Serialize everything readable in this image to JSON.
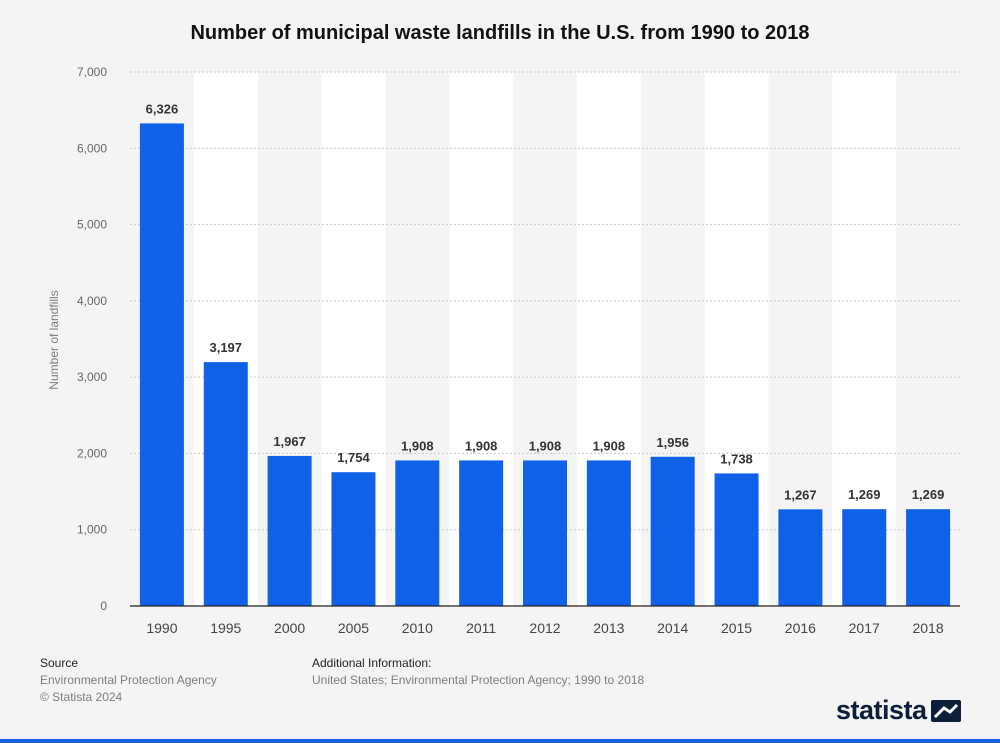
{
  "chart_data": {
    "type": "bar",
    "title": "Number of municipal waste landfills in the U.S. from 1990 to 2018",
    "xlabel": "",
    "ylabel": "Number of landfills",
    "categories": [
      "1990",
      "1995",
      "2000",
      "2005",
      "2010",
      "2011",
      "2012",
      "2013",
      "2014",
      "2015",
      "2016",
      "2017",
      "2018"
    ],
    "values": [
      6326,
      3197,
      1967,
      1754,
      1908,
      1908,
      1908,
      1908,
      1956,
      1738,
      1267,
      1269,
      1269
    ],
    "value_labels": [
      "6,326",
      "3,197",
      "1,967",
      "1,754",
      "1,908",
      "1,908",
      "1,908",
      "1,908",
      "1,956",
      "1,738",
      "1,267",
      "1,269",
      "1,269"
    ],
    "ylim": [
      0,
      7000
    ],
    "yticks": [
      0,
      1000,
      2000,
      3000,
      4000,
      5000,
      6000,
      7000
    ],
    "ytick_labels": [
      "0",
      "1,000",
      "2,000",
      "3,000",
      "4,000",
      "5,000",
      "6,000",
      "7,000"
    ],
    "grid": true,
    "legend": "none"
  },
  "colors": {
    "bar": "#0f62e8",
    "grid": "#c8c8c8",
    "band": "#ffffff",
    "axis_text": "#666666",
    "value_text": "#333333"
  },
  "footer": {
    "source_heading": "Source",
    "source_lines": [
      "Environmental Protection Agency",
      "© Statista 2024"
    ],
    "additional_heading": "Additional Information:",
    "additional_text": "United States; Environmental Protection Agency; 1990 to 2018"
  },
  "logo": {
    "text": "statista",
    "icon": "statista-logo-icon"
  }
}
